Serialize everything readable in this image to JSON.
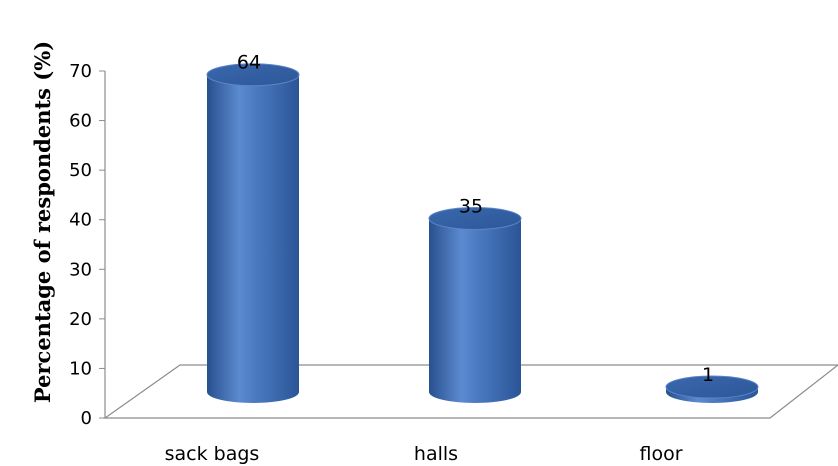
{
  "chart_data": {
    "type": "bar",
    "title": "",
    "xlabel": "",
    "ylabel": "Percentage of respondents (%)",
    "categories": [
      "sack bags",
      "halls",
      "floor"
    ],
    "values": [
      64,
      35,
      1
    ],
    "data_labels": [
      "64",
      "35",
      "1"
    ],
    "ylim": [
      0,
      70
    ],
    "yticks": [
      0,
      10,
      20,
      30,
      40,
      50,
      60,
      70
    ],
    "style": "3d-cylinder",
    "bar_color": "#3e6fb8",
    "grid": false,
    "legend": "none"
  }
}
